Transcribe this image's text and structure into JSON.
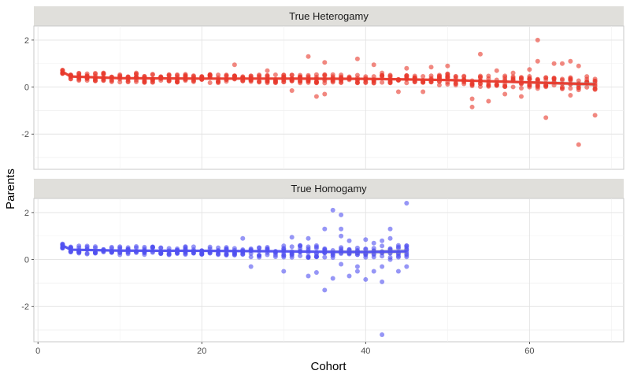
{
  "chart_data": {
    "type": "scatter",
    "xlabel": "Cohort",
    "ylabel": "Parents",
    "xlim": [
      -0.5,
      71.5
    ],
    "ylim": [
      -3.5,
      2.6
    ],
    "x_ticks": [
      0,
      20,
      40,
      60
    ],
    "y_ticks": [
      -2,
      0,
      2
    ],
    "grid": true,
    "panels": [
      {
        "name": "True Heterogamy",
        "color": "#E8392B",
        "cohort_range": [
          3,
          68
        ],
        "trend": [
          [
            3,
            0.65
          ],
          [
            4,
            0.45
          ],
          [
            10,
            0.38
          ],
          [
            20,
            0.36
          ],
          [
            30,
            0.36
          ],
          [
            40,
            0.35
          ],
          [
            50,
            0.3
          ],
          [
            60,
            0.2
          ],
          [
            68,
            0.12
          ]
        ],
        "band": [
          [
            55,
            0.05
          ],
          [
            60,
            0.06
          ],
          [
            65,
            0.08
          ],
          [
            68,
            0.1
          ]
        ],
        "outliers": [
          [
            24,
            0.95
          ],
          [
            33,
            1.3
          ],
          [
            35,
            1.05
          ],
          [
            39,
            1.2
          ],
          [
            41,
            0.95
          ],
          [
            45,
            0.8
          ],
          [
            48,
            0.85
          ],
          [
            50,
            0.9
          ],
          [
            54,
            1.4
          ],
          [
            61,
            2.0
          ],
          [
            61,
            1.1
          ],
          [
            63,
            1.0
          ],
          [
            64,
            1.0
          ],
          [
            65,
            1.1
          ],
          [
            66,
            0.9
          ],
          [
            31,
            -0.15
          ],
          [
            34,
            -0.4
          ],
          [
            35,
            -0.3
          ],
          [
            44,
            -0.2
          ],
          [
            47,
            -0.2
          ],
          [
            53,
            -0.5
          ],
          [
            53,
            -0.85
          ],
          [
            55,
            -0.6
          ],
          [
            57,
            -0.3
          ],
          [
            59,
            -0.4
          ],
          [
            62,
            -1.3
          ],
          [
            65,
            -0.35
          ],
          [
            66,
            -2.45
          ],
          [
            68,
            -1.2
          ],
          [
            8,
            0.6
          ],
          [
            12,
            0.6
          ],
          [
            28,
            0.7
          ],
          [
            42,
            0.6
          ],
          [
            56,
            0.7
          ],
          [
            58,
            0.6
          ],
          [
            60,
            0.75
          ],
          [
            67,
            0.45
          ]
        ]
      },
      {
        "name": "True Homogamy",
        "color": "#5050F0",
        "cohort_range": [
          3,
          45
        ],
        "trend": [
          [
            3,
            0.6
          ],
          [
            4,
            0.42
          ],
          [
            10,
            0.38
          ],
          [
            20,
            0.37
          ],
          [
            30,
            0.35
          ],
          [
            35,
            0.33
          ],
          [
            40,
            0.32
          ],
          [
            45,
            0.35
          ]
        ],
        "band": [
          [
            35,
            0.06
          ],
          [
            40,
            0.08
          ],
          [
            45,
            0.1
          ]
        ],
        "outliers": [
          [
            25,
            0.9
          ],
          [
            31,
            0.95
          ],
          [
            33,
            0.9
          ],
          [
            36,
            2.1
          ],
          [
            37,
            1.9
          ],
          [
            37,
            1.3
          ],
          [
            37,
            1.0
          ],
          [
            35,
            1.3
          ],
          [
            38,
            0.8
          ],
          [
            40,
            0.85
          ],
          [
            41,
            0.7
          ],
          [
            42,
            0.8
          ],
          [
            43,
            0.9
          ],
          [
            43,
            1.3
          ],
          [
            45,
            2.4
          ],
          [
            26,
            -0.3
          ],
          [
            30,
            -0.5
          ],
          [
            33,
            -0.7
          ],
          [
            34,
            -0.55
          ],
          [
            35,
            -1.3
          ],
          [
            36,
            -0.8
          ],
          [
            37,
            -0.2
          ],
          [
            38,
            -0.7
          ],
          [
            39,
            -0.3
          ],
          [
            40,
            -0.85
          ],
          [
            41,
            -0.5
          ],
          [
            42,
            -0.95
          ],
          [
            42,
            -0.3
          ],
          [
            43,
            0.0
          ],
          [
            44,
            -0.5
          ],
          [
            45,
            -0.3
          ],
          [
            42,
            -3.2
          ],
          [
            39,
            -0.5
          ],
          [
            44,
            0.1
          ]
        ]
      }
    ]
  }
}
